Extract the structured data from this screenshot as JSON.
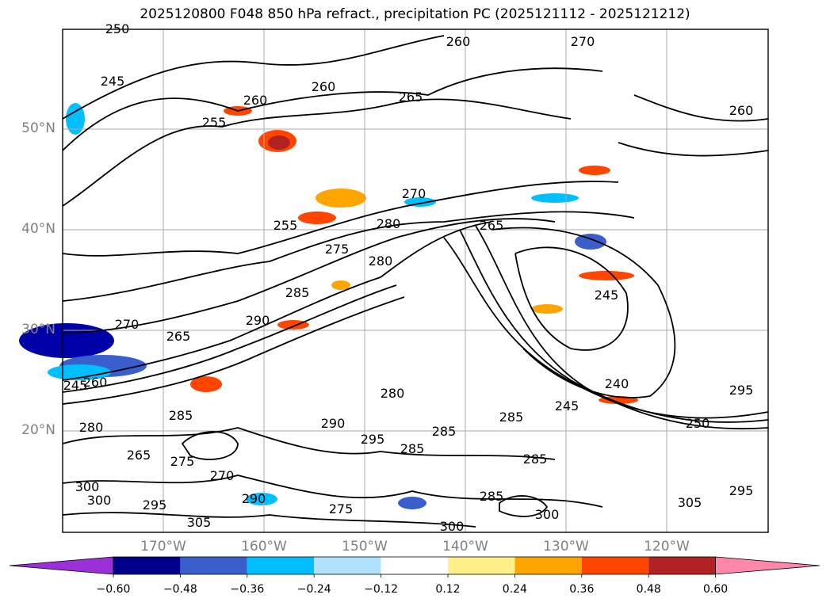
{
  "title": "2025120800 F048 850 hPa refract., precipitation PC (2025121112 - 2025121212)",
  "lat_labels": [
    "50°N",
    "40°N",
    "30°N",
    "20°N"
  ],
  "lon_labels": [
    "170°W",
    "160°W",
    "150°W",
    "140°W",
    "130°W",
    "120°W"
  ],
  "colorbar": {
    "ticks": [
      "−0.60",
      "−0.48",
      "−0.36",
      "−0.24",
      "−0.12",
      "0.12",
      "0.24",
      "0.36",
      "0.48",
      "0.60"
    ],
    "colors": [
      "#9b30d9",
      "#00008b",
      "#3a5fcd",
      "#00bfff",
      "#b0e2ff",
      "#ffffff",
      "#fff08c",
      "#ffa500",
      "#ff4500",
      "#b22222",
      "#ff88aa"
    ]
  },
  "contour_labels": [
    "250",
    "260",
    "270",
    "245",
    "260",
    "265",
    "255",
    "260",
    "260",
    "270",
    "280",
    "265",
    "255",
    "275",
    "280",
    "285",
    "290",
    "245",
    "270",
    "265",
    "240",
    "245",
    "250",
    "245",
    "290",
    "280",
    "285",
    "295",
    "285",
    "285",
    "265",
    "285",
    "275",
    "270",
    "295",
    "290",
    "280",
    "300",
    "305",
    "285",
    "295",
    "300",
    "305",
    "300",
    "295",
    "300",
    "285",
    "275",
    "260"
  ]
}
